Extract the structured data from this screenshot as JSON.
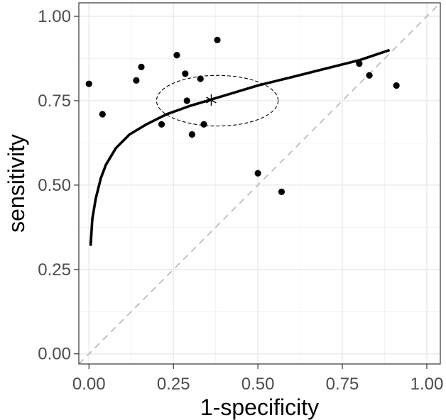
{
  "chart_data": {
    "type": "scatter",
    "title": "",
    "xlabel": "1-specificity",
    "ylabel": "sensitivity",
    "xlim": [
      -0.03,
      1.04
    ],
    "ylim": [
      -0.03,
      1.04
    ],
    "xticks": [
      0.0,
      0.25,
      0.5,
      0.75,
      1.0
    ],
    "yticks": [
      0.0,
      0.25,
      0.5,
      0.75,
      1.0
    ],
    "xtick_labels": [
      "0.00",
      "0.25",
      "0.50",
      "0.75",
      "1.00"
    ],
    "ytick_labels": [
      "0.00",
      "0.25",
      "0.50",
      "0.75",
      "1.00"
    ],
    "grid": true,
    "points": [
      {
        "x": 0.0,
        "y": 0.8
      },
      {
        "x": 0.04,
        "y": 0.71
      },
      {
        "x": 0.14,
        "y": 0.81
      },
      {
        "x": 0.155,
        "y": 0.85
      },
      {
        "x": 0.215,
        "y": 0.68
      },
      {
        "x": 0.26,
        "y": 0.885
      },
      {
        "x": 0.285,
        "y": 0.83
      },
      {
        "x": 0.29,
        "y": 0.75
      },
      {
        "x": 0.305,
        "y": 0.65
      },
      {
        "x": 0.33,
        "y": 0.815
      },
      {
        "x": 0.34,
        "y": 0.68
      },
      {
        "x": 0.38,
        "y": 0.93
      },
      {
        "x": 0.5,
        "y": 0.535
      },
      {
        "x": 0.57,
        "y": 0.48
      },
      {
        "x": 0.8,
        "y": 0.86
      },
      {
        "x": 0.83,
        "y": 0.825
      },
      {
        "x": 0.91,
        "y": 0.795
      }
    ],
    "summary_point": {
      "x": 0.362,
      "y": 0.752
    },
    "confidence_ellipse": {
      "cx": 0.38,
      "cy": 0.75,
      "rx": 0.18,
      "ry": 0.075
    },
    "sroc_curve": [
      [
        0.005,
        0.32
      ],
      [
        0.01,
        0.4
      ],
      [
        0.02,
        0.46
      ],
      [
        0.035,
        0.52
      ],
      [
        0.05,
        0.56
      ],
      [
        0.08,
        0.61
      ],
      [
        0.12,
        0.65
      ],
      [
        0.17,
        0.68
      ],
      [
        0.23,
        0.71
      ],
      [
        0.3,
        0.735
      ],
      [
        0.4,
        0.765
      ],
      [
        0.5,
        0.795
      ],
      [
        0.6,
        0.82
      ],
      [
        0.7,
        0.845
      ],
      [
        0.8,
        0.87
      ],
      [
        0.89,
        0.9
      ]
    ],
    "reference_line": [
      [
        -0.03,
        -0.03
      ],
      [
        1.04,
        1.04
      ]
    ]
  }
}
